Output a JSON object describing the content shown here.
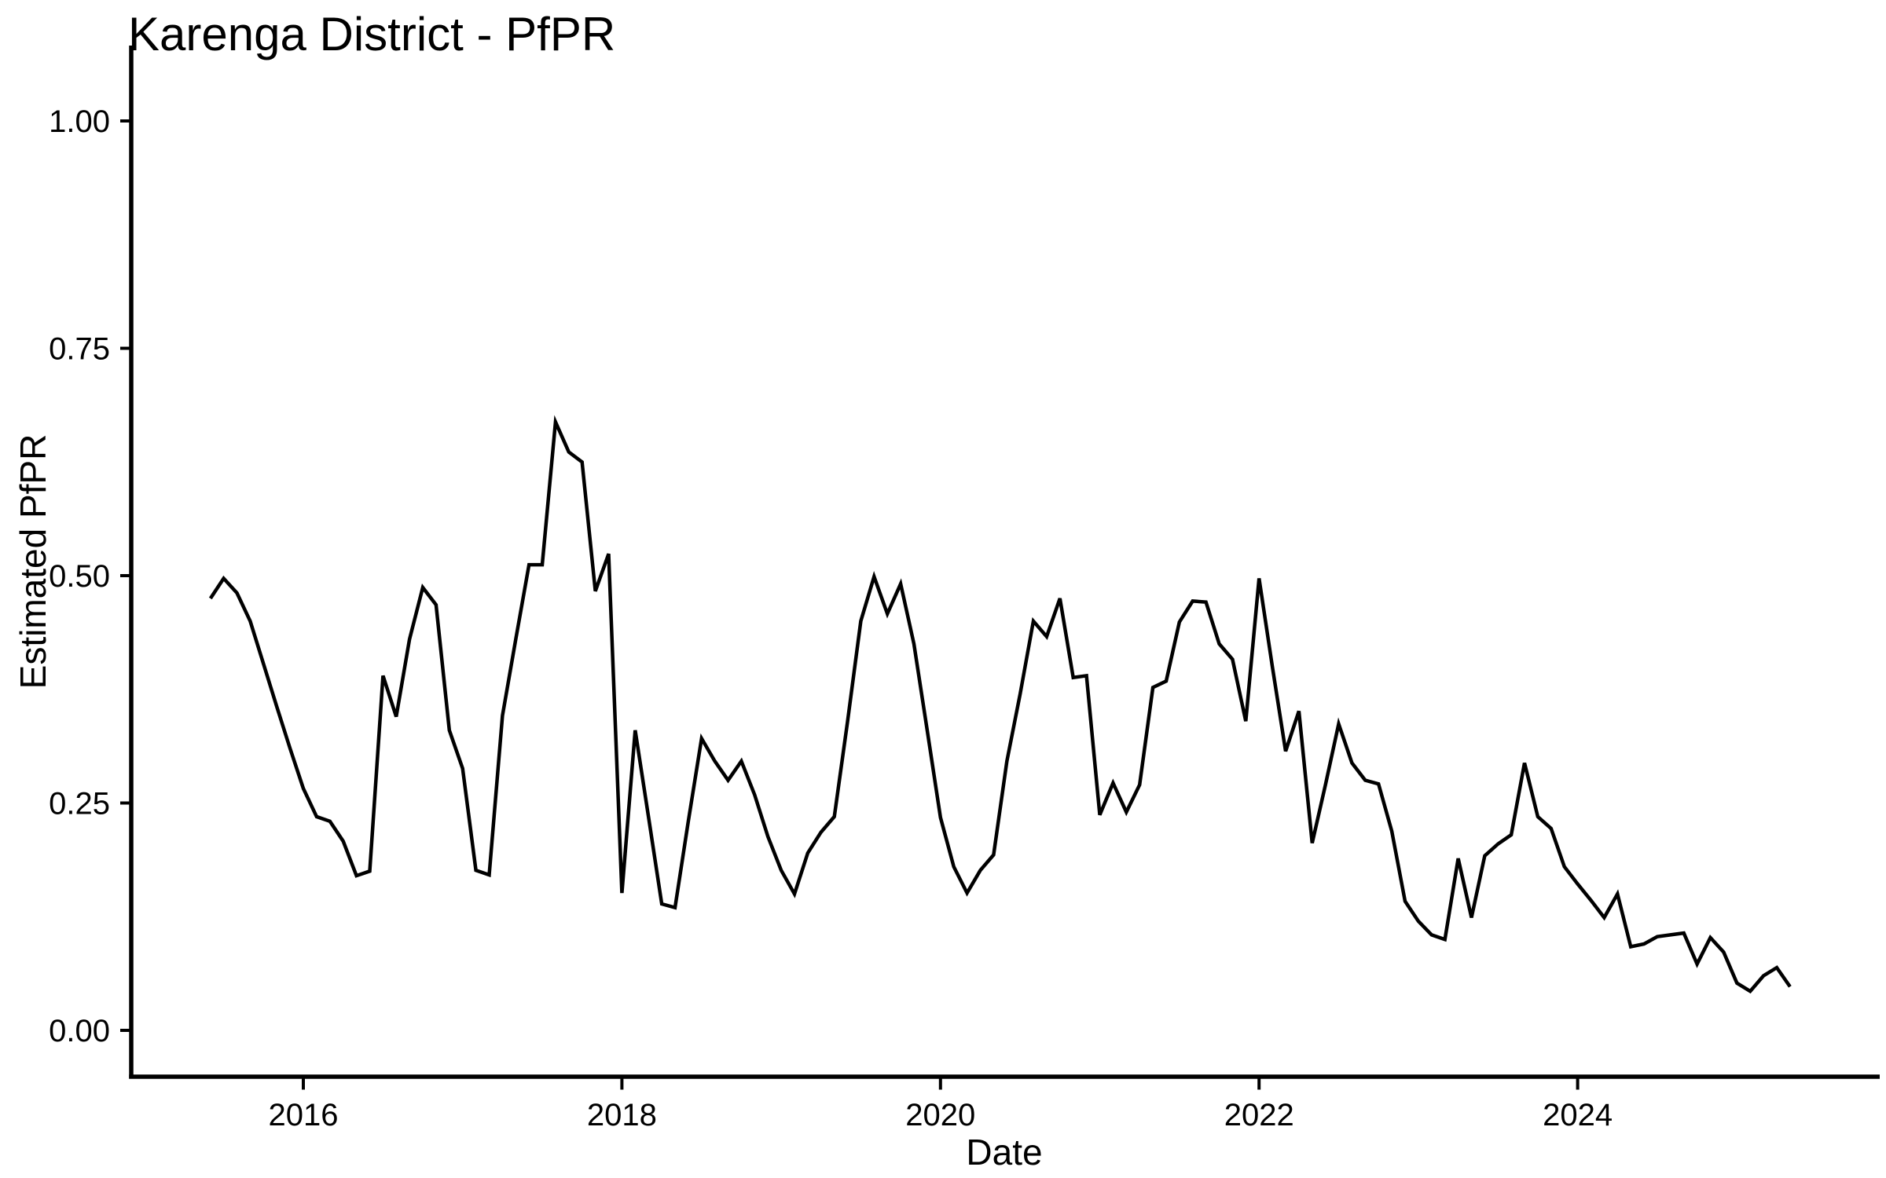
{
  "chart_data": {
    "type": "line",
    "title": "Karenga District - PfPR",
    "xlabel": "Date",
    "ylabel": "Estimated PfPR",
    "legend": "none",
    "grid": false,
    "background_color": "#FFFFFF",
    "line_color": "#000000",
    "axis_color": "#000000",
    "ylim": [
      0.0,
      1.0
    ],
    "y_ticks": [
      {
        "label": "0.00",
        "value": 0.0
      },
      {
        "label": "0.25",
        "value": 0.25
      },
      {
        "label": "0.50",
        "value": 0.5
      },
      {
        "label": "0.75",
        "value": 0.75
      },
      {
        "label": "1.00",
        "value": 1.0
      }
    ],
    "x_ticks": [
      {
        "label": "2016",
        "value": 2016
      },
      {
        "label": "2018",
        "value": 2018
      },
      {
        "label": "2020",
        "value": 2020
      },
      {
        "label": "2022",
        "value": 2022
      },
      {
        "label": "2024",
        "value": 2024
      }
    ],
    "series_name": "Estimated PfPR",
    "x": [
      "2015-06",
      "2015-07",
      "2015-08",
      "2015-09",
      "2015-10",
      "2015-11",
      "2015-12",
      "2016-01",
      "2016-02",
      "2016-03",
      "2016-04",
      "2016-05",
      "2016-06",
      "2016-07",
      "2016-08",
      "2016-09",
      "2016-10",
      "2016-11",
      "2016-12",
      "2017-01",
      "2017-02",
      "2017-03",
      "2017-04",
      "2017-05",
      "2017-06",
      "2017-07",
      "2017-08",
      "2017-09",
      "2017-10",
      "2017-11",
      "2017-12",
      "2018-01",
      "2018-02",
      "2018-03",
      "2018-04",
      "2018-05",
      "2018-06",
      "2018-07",
      "2018-08",
      "2018-09",
      "2018-10",
      "2018-11",
      "2018-12",
      "2019-01",
      "2019-02",
      "2019-03",
      "2019-04",
      "2019-05",
      "2019-06",
      "2019-07",
      "2019-08",
      "2019-09",
      "2019-10",
      "2019-11",
      "2019-12",
      "2020-01",
      "2020-02",
      "2020-03",
      "2020-04",
      "2020-05",
      "2020-06",
      "2020-07",
      "2020-08",
      "2020-09",
      "2020-10",
      "2020-11",
      "2020-12",
      "2021-01",
      "2021-02",
      "2021-03",
      "2021-04",
      "2021-05",
      "2021-06",
      "2021-07",
      "2021-08",
      "2021-09",
      "2021-10",
      "2021-11",
      "2021-12",
      "2022-01",
      "2022-02",
      "2022-03",
      "2022-04",
      "2022-05",
      "2022-06",
      "2022-07",
      "2022-08",
      "2022-09",
      "2022-10",
      "2022-11",
      "2022-12",
      "2023-01",
      "2023-02",
      "2023-03",
      "2023-04",
      "2023-05",
      "2023-06",
      "2023-07",
      "2023-08",
      "2023-09",
      "2023-10",
      "2023-11",
      "2023-12",
      "2024-01",
      "2024-02",
      "2024-03",
      "2024-04",
      "2024-05",
      "2024-06",
      "2024-07",
      "2024-08",
      "2024-09",
      "2024-10",
      "2024-11",
      "2024-12",
      "2025-01",
      "2025-02",
      "2025-03",
      "2025-04",
      "2025-05"
    ],
    "y": [
      0.475,
      0.497,
      0.481,
      0.45,
      0.403,
      0.356,
      0.31,
      0.266,
      0.235,
      0.23,
      0.208,
      0.17,
      0.175,
      0.39,
      0.345,
      0.43,
      0.487,
      0.468,
      0.33,
      0.288,
      0.176,
      0.171,
      0.346,
      0.43,
      0.512,
      0.512,
      0.669,
      0.636,
      0.625,
      0.483,
      0.524,
      0.151,
      0.33,
      0.235,
      0.139,
      0.135,
      0.23,
      0.321,
      0.296,
      0.275,
      0.296,
      0.259,
      0.213,
      0.176,
      0.15,
      0.195,
      0.218,
      0.235,
      0.34,
      0.45,
      0.499,
      0.458,
      0.491,
      0.425,
      0.33,
      0.234,
      0.18,
      0.151,
      0.176,
      0.193,
      0.296,
      0.37,
      0.45,
      0.433,
      0.475,
      0.388,
      0.39,
      0.237,
      0.272,
      0.24,
      0.27,
      0.377,
      0.384,
      0.449,
      0.472,
      0.471,
      0.425,
      0.408,
      0.34,
      0.497,
      0.4,
      0.307,
      0.351,
      0.206,
      0.27,
      0.337,
      0.294,
      0.275,
      0.271,
      0.219,
      0.142,
      0.12,
      0.105,
      0.1,
      0.189,
      0.124,
      0.192,
      0.205,
      0.215,
      0.294,
      0.235,
      0.222,
      0.18,
      0.161,
      0.143,
      0.124,
      0.15,
      0.092,
      0.095,
      0.103,
      0.105,
      0.107,
      0.073,
      0.102,
      0.086,
      0.052,
      0.043,
      0.06,
      0.069,
      0.048
    ]
  }
}
